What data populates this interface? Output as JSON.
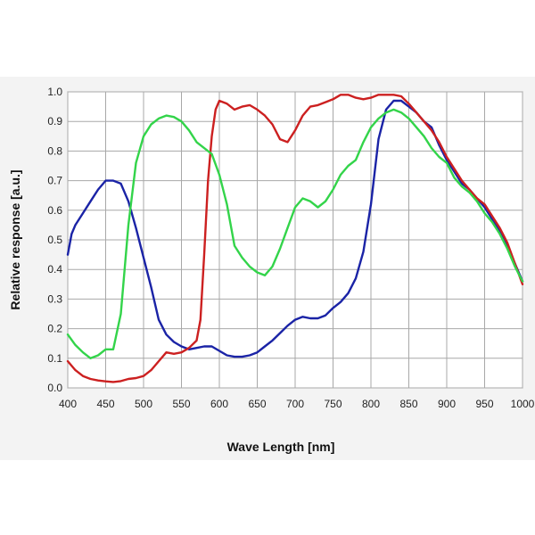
{
  "chart_data": {
    "type": "line",
    "xlabel": "Wave Length [nm]",
    "ylabel": "Relative  response [a.u.]",
    "xlim": [
      400,
      1000
    ],
    "ylim": [
      0,
      1.0
    ],
    "x_ticks": [
      400,
      450,
      500,
      550,
      600,
      650,
      700,
      750,
      800,
      850,
      900,
      950,
      1000
    ],
    "y_ticks": [
      "0.0",
      "0.1",
      "0.2",
      "0.3",
      "0.4",
      "0.5",
      "0.6",
      "0.7",
      "0.8",
      "0.9",
      "1.0"
    ],
    "grid": true,
    "series": [
      {
        "color": "#1a23a6",
        "points": [
          [
            400,
            0.45
          ],
          [
            405,
            0.52
          ],
          [
            410,
            0.55
          ],
          [
            420,
            0.59
          ],
          [
            430,
            0.63
          ],
          [
            440,
            0.67
          ],
          [
            450,
            0.7
          ],
          [
            460,
            0.7
          ],
          [
            470,
            0.69
          ],
          [
            480,
            0.63
          ],
          [
            490,
            0.54
          ],
          [
            500,
            0.44
          ],
          [
            510,
            0.34
          ],
          [
            520,
            0.23
          ],
          [
            530,
            0.18
          ],
          [
            540,
            0.155
          ],
          [
            550,
            0.14
          ],
          [
            560,
            0.13
          ],
          [
            570,
            0.135
          ],
          [
            580,
            0.14
          ],
          [
            590,
            0.14
          ],
          [
            600,
            0.125
          ],
          [
            610,
            0.11
          ],
          [
            620,
            0.105
          ],
          [
            630,
            0.105
          ],
          [
            640,
            0.11
          ],
          [
            650,
            0.12
          ],
          [
            660,
            0.14
          ],
          [
            670,
            0.16
          ],
          [
            680,
            0.185
          ],
          [
            690,
            0.21
          ],
          [
            700,
            0.23
          ],
          [
            710,
            0.24
          ],
          [
            720,
            0.235
          ],
          [
            730,
            0.235
          ],
          [
            740,
            0.245
          ],
          [
            750,
            0.27
          ],
          [
            760,
            0.29
          ],
          [
            770,
            0.32
          ],
          [
            780,
            0.37
          ],
          [
            790,
            0.46
          ],
          [
            800,
            0.62
          ],
          [
            810,
            0.84
          ],
          [
            820,
            0.94
          ],
          [
            830,
            0.97
          ],
          [
            840,
            0.97
          ],
          [
            850,
            0.95
          ],
          [
            860,
            0.93
          ],
          [
            870,
            0.9
          ],
          [
            880,
            0.88
          ],
          [
            890,
            0.82
          ],
          [
            900,
            0.77
          ],
          [
            910,
            0.73
          ],
          [
            920,
            0.69
          ],
          [
            930,
            0.67
          ],
          [
            940,
            0.64
          ],
          [
            950,
            0.61
          ],
          [
            960,
            0.57
          ],
          [
            970,
            0.53
          ],
          [
            980,
            0.48
          ],
          [
            990,
            0.42
          ],
          [
            1000,
            0.36
          ]
        ]
      },
      {
        "color": "#cc2020",
        "points": [
          [
            400,
            0.09
          ],
          [
            410,
            0.06
          ],
          [
            420,
            0.04
          ],
          [
            430,
            0.03
          ],
          [
            440,
            0.025
          ],
          [
            450,
            0.022
          ],
          [
            460,
            0.02
          ],
          [
            470,
            0.023
          ],
          [
            480,
            0.03
          ],
          [
            490,
            0.033
          ],
          [
            500,
            0.04
          ],
          [
            510,
            0.06
          ],
          [
            520,
            0.09
          ],
          [
            530,
            0.12
          ],
          [
            540,
            0.115
          ],
          [
            550,
            0.12
          ],
          [
            560,
            0.135
          ],
          [
            570,
            0.16
          ],
          [
            575,
            0.23
          ],
          [
            580,
            0.45
          ],
          [
            585,
            0.7
          ],
          [
            590,
            0.85
          ],
          [
            595,
            0.94
          ],
          [
            600,
            0.97
          ],
          [
            610,
            0.96
          ],
          [
            620,
            0.94
          ],
          [
            630,
            0.95
          ],
          [
            640,
            0.955
          ],
          [
            650,
            0.94
          ],
          [
            660,
            0.92
          ],
          [
            670,
            0.89
          ],
          [
            680,
            0.84
          ],
          [
            690,
            0.83
          ],
          [
            700,
            0.87
          ],
          [
            710,
            0.92
          ],
          [
            720,
            0.95
          ],
          [
            730,
            0.955
          ],
          [
            740,
            0.965
          ],
          [
            750,
            0.975
          ],
          [
            760,
            0.99
          ],
          [
            770,
            0.99
          ],
          [
            780,
            0.98
          ],
          [
            790,
            0.975
          ],
          [
            800,
            0.98
          ],
          [
            810,
            0.99
          ],
          [
            820,
            0.99
          ],
          [
            830,
            0.99
          ],
          [
            840,
            0.985
          ],
          [
            850,
            0.96
          ],
          [
            860,
            0.93
          ],
          [
            870,
            0.9
          ],
          [
            880,
            0.87
          ],
          [
            890,
            0.83
          ],
          [
            900,
            0.78
          ],
          [
            910,
            0.74
          ],
          [
            920,
            0.7
          ],
          [
            930,
            0.67
          ],
          [
            940,
            0.64
          ],
          [
            950,
            0.62
          ],
          [
            960,
            0.58
          ],
          [
            970,
            0.54
          ],
          [
            980,
            0.49
          ],
          [
            990,
            0.42
          ],
          [
            1000,
            0.35
          ]
        ]
      },
      {
        "color": "#33d44a",
        "points": [
          [
            400,
            0.18
          ],
          [
            410,
            0.145
          ],
          [
            420,
            0.12
          ],
          [
            430,
            0.1
          ],
          [
            440,
            0.11
          ],
          [
            450,
            0.13
          ],
          [
            460,
            0.13
          ],
          [
            470,
            0.25
          ],
          [
            480,
            0.55
          ],
          [
            490,
            0.76
          ],
          [
            500,
            0.85
          ],
          [
            510,
            0.89
          ],
          [
            520,
            0.91
          ],
          [
            530,
            0.92
          ],
          [
            540,
            0.915
          ],
          [
            550,
            0.9
          ],
          [
            560,
            0.87
          ],
          [
            570,
            0.83
          ],
          [
            580,
            0.81
          ],
          [
            590,
            0.79
          ],
          [
            600,
            0.72
          ],
          [
            610,
            0.62
          ],
          [
            620,
            0.48
          ],
          [
            630,
            0.44
          ],
          [
            640,
            0.41
          ],
          [
            650,
            0.39
          ],
          [
            660,
            0.38
          ],
          [
            670,
            0.41
          ],
          [
            680,
            0.47
          ],
          [
            690,
            0.54
          ],
          [
            700,
            0.61
          ],
          [
            710,
            0.64
          ],
          [
            720,
            0.63
          ],
          [
            730,
            0.61
          ],
          [
            740,
            0.63
          ],
          [
            750,
            0.67
          ],
          [
            760,
            0.72
          ],
          [
            770,
            0.75
          ],
          [
            780,
            0.77
          ],
          [
            790,
            0.83
          ],
          [
            800,
            0.88
          ],
          [
            810,
            0.91
          ],
          [
            820,
            0.93
          ],
          [
            830,
            0.94
          ],
          [
            840,
            0.93
          ],
          [
            850,
            0.91
          ],
          [
            860,
            0.88
          ],
          [
            870,
            0.85
          ],
          [
            880,
            0.81
          ],
          [
            890,
            0.78
          ],
          [
            900,
            0.76
          ],
          [
            910,
            0.71
          ],
          [
            920,
            0.68
          ],
          [
            930,
            0.66
          ],
          [
            940,
            0.63
          ],
          [
            950,
            0.59
          ],
          [
            960,
            0.56
          ],
          [
            970,
            0.52
          ],
          [
            980,
            0.47
          ],
          [
            990,
            0.41
          ],
          [
            1000,
            0.36
          ]
        ]
      }
    ]
  }
}
